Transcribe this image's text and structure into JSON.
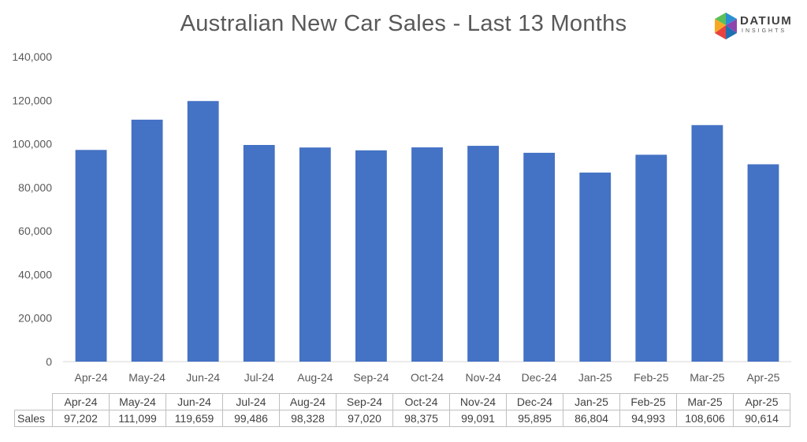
{
  "chart_data": {
    "type": "bar",
    "title": "Australian New Car Sales  - Last 13 Months",
    "categories": [
      "Apr-24",
      "May-24",
      "Jun-24",
      "Jul-24",
      "Aug-24",
      "Sep-24",
      "Oct-24",
      "Nov-24",
      "Dec-24",
      "Jan-25",
      "Feb-25",
      "Mar-25",
      "Apr-25"
    ],
    "series": [
      {
        "name": "Sales",
        "values": [
          97202,
          111099,
          119659,
          99486,
          98328,
          97020,
          98375,
          99091,
          95895,
          86804,
          94993,
          108606,
          90614
        ],
        "color": "#4472c4"
      }
    ],
    "ylim": [
      0,
      140000
    ],
    "yticks": [
      "0",
      "20,000",
      "40,000",
      "60,000",
      "80,000",
      "100,000",
      "120,000",
      "140,000"
    ],
    "grid": false,
    "legend": "none",
    "data_table": {
      "row_label": "Sales",
      "values": [
        "97,202",
        "111,099",
        "119,659",
        "99,486",
        "98,328",
        "97,020",
        "98,375",
        "99,091",
        "95,895",
        "86,804",
        "94,993",
        "108,606",
        "90,614"
      ]
    }
  },
  "logo": {
    "name": "DATIUM",
    "tagline": "INSIGHTS",
    "colors": [
      "#f7a823",
      "#e8423f",
      "#5bbf5a",
      "#2a8fd3",
      "#8e44ad"
    ]
  }
}
